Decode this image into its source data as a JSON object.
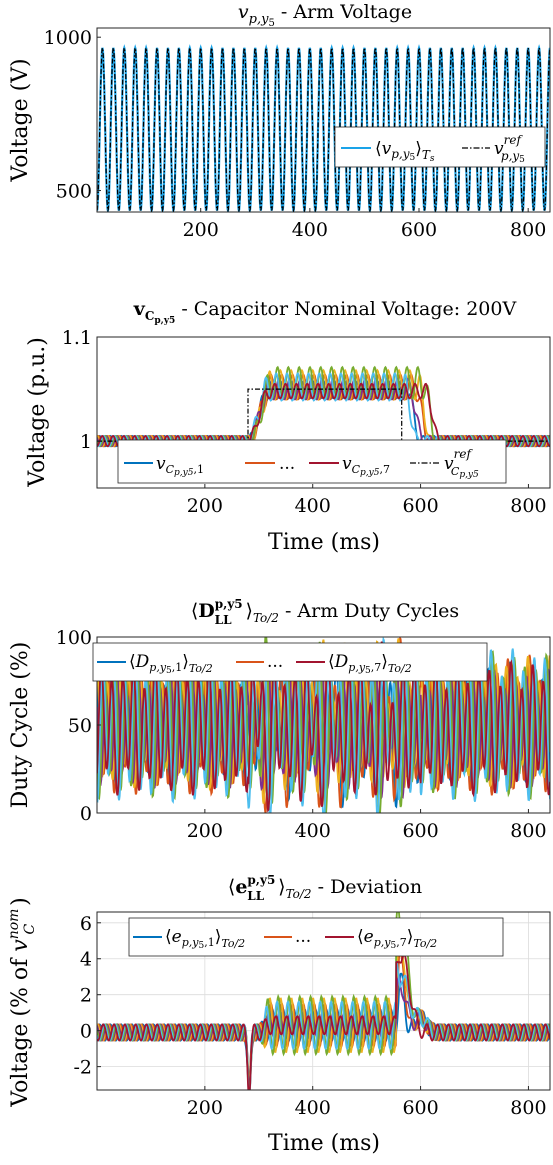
{
  "chart_data": [
    {
      "type": "line",
      "title": "v_{p,y5} - Arm Voltage",
      "xlabel": "",
      "ylabel": "Voltage (V)",
      "xlim": [
        10,
        840
      ],
      "ylim": [
        430,
        1030
      ],
      "xticks": [
        200,
        400,
        600,
        800
      ],
      "yticks": [
        500,
        1000
      ],
      "grid": false,
      "legend": {
        "placement": "bottom-right",
        "entries": [
          "⟨v_{p,y5}⟩_{Ts}",
          "v^{ref}_{p,y5}"
        ]
      },
      "series": [
        {
          "name": "⟨v_{p,y5}⟩_{Ts}",
          "color": "#1aa3e8",
          "style": "solid",
          "kind": "sine",
          "offset": 700,
          "amplitude": 265,
          "period_ms": 20
        },
        {
          "name": "v^{ref}_{p,y5}",
          "color": "#000000",
          "style": "dashdot",
          "kind": "sine",
          "offset": 700,
          "amplitude": 265,
          "period_ms": 20
        }
      ]
    },
    {
      "type": "line",
      "title": "v_{C_{p,y5}} - Capacitor Nominal Voltage: 200V",
      "xlabel": "Time (ms)",
      "ylabel": "Voltage (p.u.)",
      "xlim": [
        0,
        840
      ],
      "ylim": [
        0.955,
        1.1
      ],
      "xticks": [
        200,
        400,
        600,
        800
      ],
      "yticks": [
        1,
        1.1
      ],
      "grid": false,
      "legend": {
        "placement": "bottom-center",
        "entries": [
          "v_{C_{p,y5},1}",
          "...",
          "v_{C_{p,y5},7}",
          "v^{ref}_{C_{p,y5}}"
        ]
      },
      "reference": {
        "x": [
          0,
          280,
          280,
          565,
          565,
          840
        ],
        "y": [
          1,
          1,
          1.05,
          1.05,
          1,
          1
        ]
      },
      "series": [
        {
          "name": "v_{C_{p,y5},1}",
          "color": "#0072BD",
          "step_start": 280,
          "step_end": 575,
          "high": 1.05,
          "ripple": 0.009
        },
        {
          "name": "",
          "color": "#D95319",
          "step_start": 282,
          "step_end": 590,
          "high": 1.052,
          "ripple": 0.012
        },
        {
          "name": "",
          "color": "#EDB120",
          "step_start": 283,
          "step_end": 595,
          "high": 1.054,
          "ripple": 0.014
        },
        {
          "name": "",
          "color": "#7E2F8E",
          "step_start": 281,
          "step_end": 580,
          "high": 1.05,
          "ripple": 0.01
        },
        {
          "name": "",
          "color": "#77AC30",
          "step_start": 284,
          "step_end": 605,
          "high": 1.056,
          "ripple": 0.015
        },
        {
          "name": "",
          "color": "#4DBEEE",
          "step_start": 279,
          "step_end": 570,
          "high": 1.052,
          "ripple": 0.013
        },
        {
          "name": "v_{C_{p,y5},7}",
          "color": "#A2142F",
          "step_start": 280,
          "step_end": 610,
          "high": 1.048,
          "ripple": 0.007
        }
      ]
    },
    {
      "type": "line",
      "title": "⟨D^{p,y5}_{LL}⟩_{To/2} - Arm Duty Cycles",
      "xlabel": "",
      "ylabel": "Duty Cycle (%)",
      "xlim": [
        0,
        840
      ],
      "ylim": [
        0,
        100
      ],
      "xticks": [
        200,
        400,
        600,
        800
      ],
      "yticks": [
        0,
        50,
        100
      ],
      "grid": false,
      "legend": {
        "placement": "top-center",
        "entries": [
          "⟨D_{p,y5,1}⟩_{To/2}",
          "...",
          "⟨D_{p,y5,7}⟩_{To/2}"
        ]
      },
      "series": [
        {
          "name": "⟨D_{p,y5,1}⟩_{To/2}",
          "color": "#0072BD",
          "offset": 50,
          "amplitude": 28,
          "phase": 0.0
        },
        {
          "name": "",
          "color": "#D95319",
          "offset": 50,
          "amplitude": 32,
          "phase": 0.9
        },
        {
          "name": "",
          "color": "#EDB120",
          "offset": 52,
          "amplitude": 30,
          "phase": 1.8
        },
        {
          "name": "",
          "color": "#7E2F8E",
          "offset": 48,
          "amplitude": 26,
          "phase": 2.7
        },
        {
          "name": "",
          "color": "#77AC30",
          "offset": 50,
          "amplitude": 34,
          "phase": 3.6
        },
        {
          "name": "",
          "color": "#4DBEEE",
          "offset": 50,
          "amplitude": 36,
          "phase": 4.5
        },
        {
          "name": "⟨D_{p,y5,7}⟩_{To/2}",
          "color": "#A2142F",
          "offset": 48,
          "amplitude": 30,
          "phase": 5.4
        }
      ]
    },
    {
      "type": "line",
      "title": "⟨e^{p,y5}_{LL}⟩_{To/2} - Deviation",
      "xlabel": "Time (ms)",
      "ylabel": "Voltage (% of v^{nom}_C)",
      "xlim": [
        0,
        840
      ],
      "ylim": [
        -3.3,
        6.6
      ],
      "xticks": [
        200,
        400,
        600,
        800
      ],
      "yticks": [
        -2,
        0,
        2,
        4,
        6
      ],
      "grid": true,
      "legend": {
        "placement": "top-center",
        "entries": [
          "⟨e_{p,y5,1}⟩_{To/2}",
          "...",
          "⟨e_{p,y5,7}⟩_{To/2}"
        ]
      },
      "series": [
        {
          "name": "⟨e_{p,y5,1}⟩_{To/2}",
          "color": "#0072BD",
          "mid_amp": 0.9,
          "peak": 2.8
        },
        {
          "name": "",
          "color": "#D95319",
          "mid_amp": 1.2,
          "peak": 3.8
        },
        {
          "name": "",
          "color": "#EDB120",
          "mid_amp": 1.5,
          "peak": 4.6
        },
        {
          "name": "",
          "color": "#7E2F8E",
          "mid_amp": 0.7,
          "peak": 2.4
        },
        {
          "name": "",
          "color": "#77AC30",
          "mid_amp": 1.6,
          "peak": 6.3
        },
        {
          "name": "",
          "color": "#4DBEEE",
          "mid_amp": 1.3,
          "peak": 3.2
        },
        {
          "name": "⟨e_{p,y5,7}⟩_{To/2}",
          "color": "#A2142F",
          "mid_amp": 0.5,
          "peak": 4.2
        }
      ]
    }
  ]
}
